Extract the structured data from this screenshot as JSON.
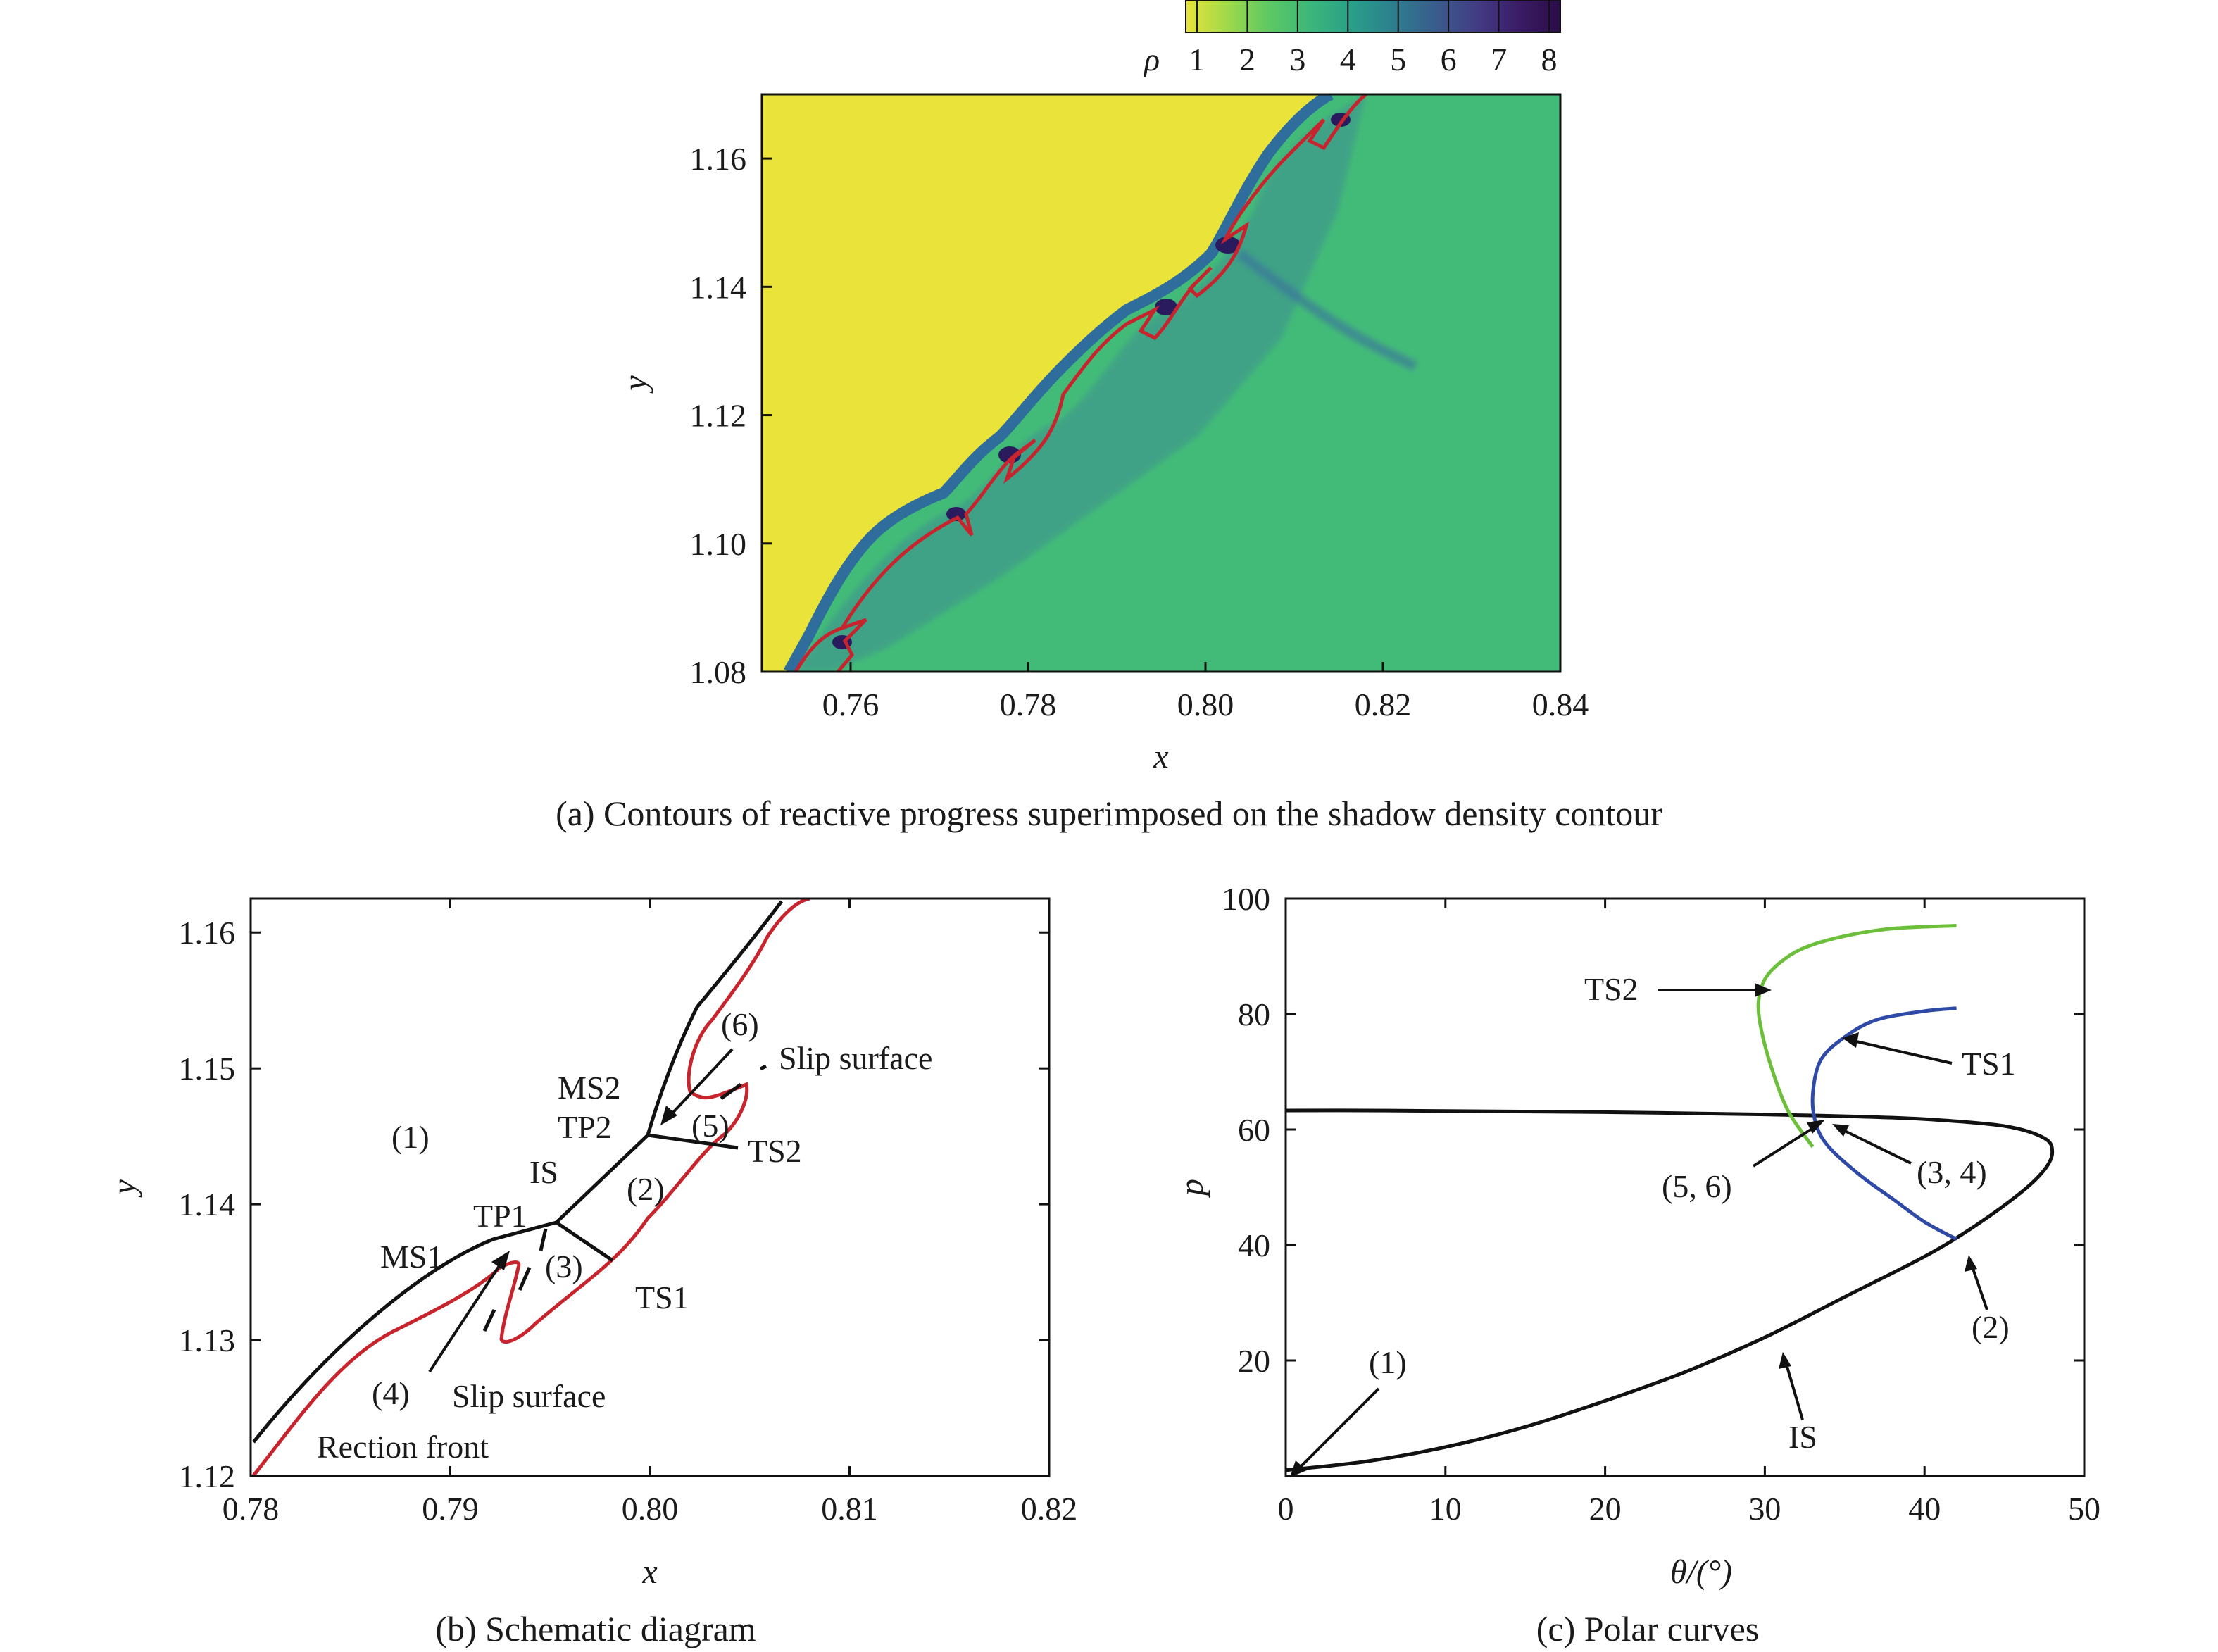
{
  "colors": {
    "unburned": "#e9e33a",
    "burned": "#43bb78",
    "shocked_dark": "#2e4b94",
    "reaction_front": "#c8242d",
    "shock": "#111111",
    "ts2_polar": "#6cbf3a",
    "ts1_polar": "#2f4aa6",
    "is_polar": "#111111"
  },
  "colorbar": {
    "label": "ρ",
    "ticks": [
      "1",
      "2",
      "3",
      "4",
      "5",
      "6",
      "7",
      "8"
    ],
    "colormap": [
      "#e9e33a",
      "#9fd94a",
      "#5dc863",
      "#3cb67a",
      "#2a9f89",
      "#2c7e8e",
      "#3a5c8c",
      "#433c84",
      "#3a1c66",
      "#2a0c47"
    ]
  },
  "panel_a": {
    "caption": "(a) Contours of reactive progress superimposed on the shadow density contour",
    "xlabel": "x",
    "ylabel": "y",
    "xticks": [
      "0.76",
      "0.78",
      "0.80",
      "0.82",
      "0.84"
    ],
    "yticks": [
      "1.08",
      "1.10",
      "1.12",
      "1.14",
      "1.16"
    ]
  },
  "panel_b": {
    "caption": "(b) Schematic diagram",
    "xlabel": "x",
    "ylabel": "y",
    "xticks": [
      "0.78",
      "0.79",
      "0.80",
      "0.81",
      "0.82"
    ],
    "yticks": [
      "1.12",
      "1.13",
      "1.14",
      "1.15",
      "1.16"
    ],
    "labels": {
      "r1": "(1)",
      "r2": "(2)",
      "r3": "(3)",
      "r4": "(4)",
      "r5": "(5)",
      "r6": "(6)",
      "ms1": "MS1",
      "ms2": "MS2",
      "tp1": "TP1",
      "tp2": "TP2",
      "is": "IS",
      "ts1": "TS1",
      "ts2": "TS2",
      "slip1": "Slip surface",
      "slip2": "Slip surface",
      "front": "Rection front"
    }
  },
  "chart_data": {
    "type": "line",
    "title": "(c) Polar curves",
    "xlabel": "θ/(°)",
    "ylabel": "p",
    "xlim": [
      0,
      50
    ],
    "ylim": [
      0,
      100
    ],
    "xticks": [
      "0",
      "10",
      "20",
      "30",
      "40",
      "50"
    ],
    "yticks": [
      "20",
      "40",
      "60",
      "80",
      "100"
    ],
    "series": [
      {
        "name": "IS",
        "x": [
          0,
          5,
          10,
          15,
          20,
          25,
          30,
          35,
          40,
          43,
          46,
          47.5,
          48,
          47.5,
          45,
          40,
          35,
          30,
          20,
          10,
          5,
          0
        ],
        "y": [
          1,
          2.5,
          5,
          8.5,
          13,
          18,
          24,
          31,
          38,
          43,
          49,
          53,
          56,
          58.5,
          60.6,
          61.8,
          62.3,
          62.6,
          63,
          63.2,
          63.3,
          63.3
        ]
      },
      {
        "name": "TS1",
        "x": [
          42,
          40,
          38,
          36,
          34,
          33.2,
          33,
          33.5,
          35,
          37,
          40,
          42
        ],
        "y": [
          41,
          44,
          48,
          52,
          57,
          61,
          66,
          72,
          76,
          79,
          80.5,
          81
        ]
      },
      {
        "name": "TS2",
        "x": [
          33,
          31.5,
          30.5,
          29.8,
          29.6,
          30,
          31,
          32.5,
          35,
          38,
          42
        ],
        "y": [
          57,
          63,
          70,
          77,
          82,
          86,
          89,
          91.5,
          93.5,
          94.8,
          95.3
        ]
      }
    ],
    "annotations": {
      "ts2": "TS2",
      "ts1": "TS1",
      "p56": "(5, 6)",
      "p34": "(3, 4)",
      "p1": "(1)",
      "p2": "(2)",
      "is": "IS"
    }
  }
}
